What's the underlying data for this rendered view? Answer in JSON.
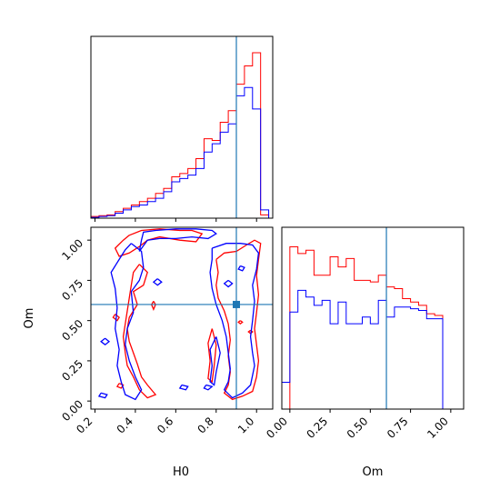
{
  "chart_data": {
    "type": "corner",
    "colors": {
      "series_a": "#ff0000",
      "series_b": "#0000ff",
      "truth": "#1f77b4"
    },
    "truth": {
      "H0": 0.9,
      "Om": 0.6
    },
    "axes": {
      "H0": {
        "label": "H0",
        "lim": [
          0.18,
          1.08
        ],
        "ticks": [
          0.2,
          0.4,
          0.6,
          0.8,
          1.0
        ],
        "tick_labels": [
          "0.2",
          "0.4",
          "0.6",
          "0.8",
          "1.0"
        ]
      },
      "Om": {
        "label": "Om",
        "lim": [
          -0.05,
          1.08
        ],
        "ticks": [
          0.0,
          0.25,
          0.5,
          0.75,
          1.0
        ],
        "tick_labels": [
          "0.00",
          "0.25",
          "0.50",
          "0.75",
          "1.00"
        ]
      }
    },
    "hist_H0": {
      "edges": [
        0.18,
        0.22,
        0.26,
        0.3,
        0.34,
        0.38,
        0.42,
        0.46,
        0.5,
        0.54,
        0.58,
        0.62,
        0.66,
        0.7,
        0.74,
        0.78,
        0.82,
        0.86,
        0.9,
        0.94,
        0.98,
        1.02,
        1.06
      ],
      "series": [
        {
          "name": "red",
          "values": [
            0.01,
            0.015,
            0.02,
            0.04,
            0.06,
            0.08,
            0.1,
            0.12,
            0.15,
            0.18,
            0.25,
            0.27,
            0.3,
            0.36,
            0.48,
            0.47,
            0.58,
            0.65,
            0.81,
            0.92,
            1.0,
            0.02
          ]
        },
        {
          "name": "blue",
          "values": [
            0.005,
            0.01,
            0.015,
            0.03,
            0.05,
            0.07,
            0.08,
            0.1,
            0.12,
            0.16,
            0.22,
            0.24,
            0.26,
            0.3,
            0.4,
            0.45,
            0.52,
            0.57,
            0.74,
            0.79,
            0.66,
            0.05
          ]
        }
      ]
    },
    "hist_Om": {
      "edges": [
        -0.05,
        0.0,
        0.05,
        0.1,
        0.15,
        0.2,
        0.25,
        0.3,
        0.35,
        0.4,
        0.45,
        0.5,
        0.55,
        0.6,
        0.65,
        0.7,
        0.75,
        0.8,
        0.85,
        0.9,
        0.95,
        1.0,
        1.05
      ],
      "series": [
        {
          "name": "red",
          "values": [
            0.0,
            0.97,
            0.93,
            0.95,
            0.8,
            0.8,
            0.91,
            0.85,
            0.9,
            0.77,
            0.77,
            0.76,
            0.8,
            0.73,
            0.72,
            0.66,
            0.64,
            0.62,
            0.57,
            0.56,
            0.0,
            0.0
          ]
        },
        {
          "name": "blue",
          "values": [
            0.16,
            0.58,
            0.71,
            0.67,
            0.62,
            0.65,
            0.51,
            0.64,
            0.51,
            0.51,
            0.55,
            0.51,
            0.65,
            0.55,
            0.61,
            0.61,
            0.6,
            0.59,
            0.54,
            0.54,
            0.0,
            0.0
          ]
        }
      ]
    },
    "contours": [
      {
        "name": "red",
        "paths": [
          [
            [
              0.37,
              1.03
            ],
            [
              0.43,
              1.06
            ],
            [
              0.52,
              1.07
            ],
            [
              0.62,
              1.06
            ],
            [
              0.68,
              1.06
            ],
            [
              0.73,
              1.04
            ],
            [
              0.7,
              0.99
            ],
            [
              0.62,
              1.0
            ],
            [
              0.52,
              1.02
            ],
            [
              0.46,
              1.0
            ],
            [
              0.42,
              0.96
            ],
            [
              0.37,
              0.92
            ],
            [
              0.32,
              0.9
            ],
            [
              0.3,
              0.95
            ],
            [
              0.34,
              1.0
            ],
            [
              0.37,
              1.03
            ]
          ],
          [
            [
              0.42,
              0.85
            ],
            [
              0.46,
              0.8
            ],
            [
              0.44,
              0.72
            ],
            [
              0.39,
              0.68
            ],
            [
              0.41,
              0.6
            ],
            [
              0.37,
              0.52
            ],
            [
              0.36,
              0.45
            ],
            [
              0.37,
              0.37
            ],
            [
              0.39,
              0.3
            ],
            [
              0.41,
              0.23
            ],
            [
              0.43,
              0.15
            ],
            [
              0.46,
              0.1
            ],
            [
              0.5,
              0.04
            ],
            [
              0.46,
              0.02
            ],
            [
              0.42,
              0.07
            ],
            [
              0.39,
              0.15
            ],
            [
              0.36,
              0.22
            ],
            [
              0.35,
              0.3
            ],
            [
              0.34,
              0.4
            ],
            [
              0.35,
              0.48
            ],
            [
              0.36,
              0.56
            ],
            [
              0.37,
              0.64
            ],
            [
              0.38,
              0.72
            ],
            [
              0.39,
              0.8
            ],
            [
              0.42,
              0.85
            ]
          ],
          [
            [
              0.8,
              0.88
            ],
            [
              0.84,
              0.92
            ],
            [
              0.9,
              0.93
            ],
            [
              0.95,
              0.97
            ],
            [
              0.99,
              1.0
            ],
            [
              1.02,
              0.98
            ],
            [
              1.01,
              0.88
            ],
            [
              1.0,
              0.78
            ],
            [
              1.01,
              0.66
            ],
            [
              1.0,
              0.55
            ],
            [
              0.99,
              0.45
            ],
            [
              1.0,
              0.35
            ],
            [
              1.01,
              0.25
            ],
            [
              1.0,
              0.15
            ],
            [
              0.98,
              0.06
            ],
            [
              0.93,
              0.03
            ],
            [
              0.88,
              0.01
            ],
            [
              0.84,
              0.05
            ],
            [
              0.86,
              0.1
            ],
            [
              0.87,
              0.18
            ],
            [
              0.86,
              0.28
            ],
            [
              0.87,
              0.38
            ],
            [
              0.86,
              0.48
            ],
            [
              0.84,
              0.56
            ],
            [
              0.81,
              0.64
            ],
            [
              0.8,
              0.72
            ],
            [
              0.81,
              0.8
            ],
            [
              0.8,
              0.88
            ]
          ],
          [
            [
              0.78,
              0.45
            ],
            [
              0.8,
              0.35
            ],
            [
              0.79,
              0.22
            ],
            [
              0.78,
              0.12
            ],
            [
              0.76,
              0.14
            ],
            [
              0.77,
              0.25
            ],
            [
              0.76,
              0.36
            ],
            [
              0.78,
              0.45
            ]
          ],
          [
            [
              0.32,
              0.11
            ],
            [
              0.34,
              0.1
            ],
            [
              0.33,
              0.08
            ],
            [
              0.31,
              0.09
            ],
            [
              0.32,
              0.11
            ]
          ],
          [
            [
              0.3,
              0.54
            ],
            [
              0.32,
              0.52
            ],
            [
              0.31,
              0.5
            ],
            [
              0.29,
              0.52
            ],
            [
              0.3,
              0.54
            ]
          ],
          [
            [
              0.49,
              0.62
            ],
            [
              0.5,
              0.6
            ],
            [
              0.49,
              0.57
            ],
            [
              0.48,
              0.6
            ],
            [
              0.49,
              0.62
            ]
          ],
          [
            [
              0.92,
              0.5
            ],
            [
              0.93,
              0.49
            ],
            [
              0.92,
              0.48
            ],
            [
              0.91,
              0.49
            ],
            [
              0.92,
              0.5
            ]
          ],
          [
            [
              0.97,
              0.44
            ],
            [
              0.98,
              0.43
            ],
            [
              0.97,
              0.42
            ],
            [
              0.96,
              0.43
            ],
            [
              0.97,
              0.44
            ]
          ]
        ]
      },
      {
        "name": "blue",
        "paths": [
          [
            [
              0.42,
              0.93
            ],
            [
              0.46,
              1.0
            ],
            [
              0.52,
              1.01
            ],
            [
              0.6,
              1.01
            ],
            [
              0.68,
              1.02
            ],
            [
              0.76,
              1.01
            ],
            [
              0.8,
              1.04
            ],
            [
              0.78,
              1.06
            ],
            [
              0.7,
              1.07
            ],
            [
              0.6,
              1.07
            ],
            [
              0.5,
              1.06
            ],
            [
              0.44,
              1.05
            ],
            [
              0.43,
              1.0
            ],
            [
              0.42,
              0.93
            ]
          ],
          [
            [
              0.38,
              0.98
            ],
            [
              0.43,
              0.93
            ],
            [
              0.44,
              0.83
            ],
            [
              0.42,
              0.75
            ],
            [
              0.38,
              0.68
            ],
            [
              0.39,
              0.55
            ],
            [
              0.36,
              0.45
            ],
            [
              0.35,
              0.35
            ],
            [
              0.37,
              0.25
            ],
            [
              0.4,
              0.15
            ],
            [
              0.43,
              0.07
            ],
            [
              0.4,
              0.01
            ],
            [
              0.35,
              0.04
            ],
            [
              0.33,
              0.12
            ],
            [
              0.31,
              0.22
            ],
            [
              0.32,
              0.32
            ],
            [
              0.3,
              0.45
            ],
            [
              0.31,
              0.58
            ],
            [
              0.3,
              0.7
            ],
            [
              0.28,
              0.8
            ],
            [
              0.32,
              0.88
            ],
            [
              0.35,
              0.94
            ],
            [
              0.38,
              0.98
            ]
          ],
          [
            [
              0.78,
              0.95
            ],
            [
              0.85,
              0.98
            ],
            [
              0.92,
              0.98
            ],
            [
              0.98,
              0.97
            ],
            [
              1.01,
              0.92
            ],
            [
              1.0,
              0.82
            ],
            [
              0.98,
              0.72
            ],
            [
              0.99,
              0.62
            ],
            [
              0.98,
              0.5
            ],
            [
              0.97,
              0.4
            ],
            [
              0.98,
              0.3
            ],
            [
              0.99,
              0.22
            ],
            [
              0.97,
              0.1
            ],
            [
              0.93,
              0.05
            ],
            [
              0.88,
              0.02
            ],
            [
              0.84,
              0.07
            ],
            [
              0.86,
              0.12
            ],
            [
              0.87,
              0.2
            ],
            [
              0.86,
              0.3
            ],
            [
              0.85,
              0.4
            ],
            [
              0.83,
              0.5
            ],
            [
              0.8,
              0.6
            ],
            [
              0.78,
              0.7
            ],
            [
              0.77,
              0.8
            ],
            [
              0.78,
              0.88
            ],
            [
              0.78,
              0.95
            ]
          ],
          [
            [
              0.8,
              0.4
            ],
            [
              0.82,
              0.3
            ],
            [
              0.8,
              0.18
            ],
            [
              0.79,
              0.1
            ],
            [
              0.77,
              0.12
            ],
            [
              0.78,
              0.22
            ],
            [
              0.77,
              0.32
            ],
            [
              0.8,
              0.4
            ]
          ],
          [
            [
              0.23,
              0.05
            ],
            [
              0.26,
              0.04
            ],
            [
              0.25,
              0.02
            ],
            [
              0.22,
              0.03
            ],
            [
              0.23,
              0.05
            ]
          ],
          [
            [
              0.25,
              0.39
            ],
            [
              0.27,
              0.37
            ],
            [
              0.25,
              0.35
            ],
            [
              0.23,
              0.37
            ],
            [
              0.25,
              0.39
            ]
          ],
          [
            [
              0.63,
              0.1
            ],
            [
              0.66,
              0.09
            ],
            [
              0.65,
              0.07
            ],
            [
              0.62,
              0.08
            ],
            [
              0.63,
              0.1
            ]
          ],
          [
            [
              0.75,
              0.1
            ],
            [
              0.78,
              0.09
            ],
            [
              0.76,
              0.07
            ],
            [
              0.74,
              0.08
            ],
            [
              0.75,
              0.1
            ]
          ],
          [
            [
              0.86,
              0.75
            ],
            [
              0.88,
              0.73
            ],
            [
              0.86,
              0.71
            ],
            [
              0.84,
              0.73
            ],
            [
              0.86,
              0.75
            ]
          ],
          [
            [
              0.92,
              0.84
            ],
            [
              0.94,
              0.83
            ],
            [
              0.93,
              0.81
            ],
            [
              0.91,
              0.82
            ],
            [
              0.92,
              0.84
            ]
          ],
          [
            [
              0.51,
              0.76
            ],
            [
              0.53,
              0.74
            ],
            [
              0.51,
              0.72
            ],
            [
              0.49,
              0.74
            ],
            [
              0.51,
              0.76
            ]
          ]
        ]
      }
    ]
  }
}
